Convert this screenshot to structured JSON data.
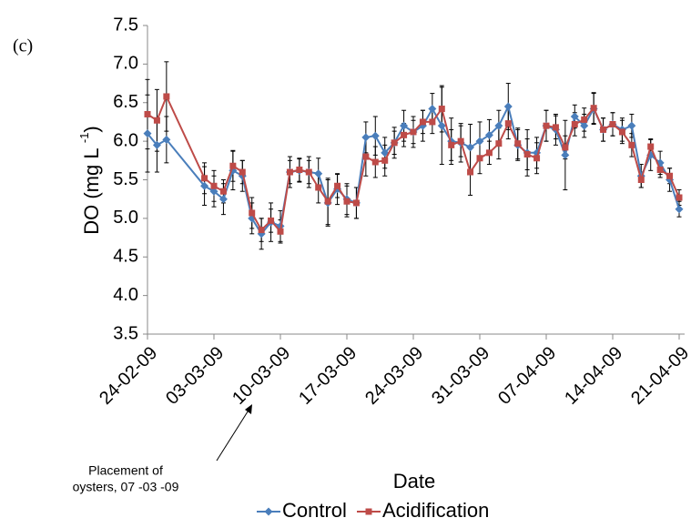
{
  "chart_data": {
    "type": "line",
    "panel_label": "(c)",
    "xlabel": "Date",
    "ylabel": {
      "text": "DO (mg L ",
      "sup": "-1",
      "end": ")"
    },
    "annotation": [
      "Placement of",
      "oysters, 07 -03 -09"
    ],
    "x": [
      "24-02-09",
      "25-02-09",
      "26-02-09",
      "02-03-09",
      "03-03-09",
      "04-03-09",
      "05-03-09",
      "06-03-09",
      "07-03-09",
      "08-03-09",
      "09-03-09",
      "10-03-09",
      "11-03-09",
      "12-03-09",
      "13-03-09",
      "14-03-09",
      "15-03-09",
      "16-03-09",
      "17-03-09",
      "18-03-09",
      "19-03-09",
      "20-03-09",
      "21-03-09",
      "22-03-09",
      "23-03-09",
      "24-03-09",
      "25-03-09",
      "26-03-09",
      "27-03-09",
      "28-03-09",
      "29-03-09",
      "30-03-09",
      "31-03-09",
      "01-04-09",
      "02-04-09",
      "03-04-09",
      "04-04-09",
      "05-04-09",
      "06-04-09",
      "07-04-09",
      "08-04-09",
      "09-04-09",
      "10-04-09",
      "11-04-09",
      "12-04-09",
      "13-04-09",
      "14-04-09",
      "15-04-09",
      "16-04-09",
      "17-04-09",
      "18-04-09",
      "19-04-09",
      "20-04-09",
      "21-04-09"
    ],
    "series": [
      {
        "name": "Control",
        "color": "#4a7ebb",
        "marker": "diamond",
        "values": [
          6.1,
          5.95,
          6.02,
          5.42,
          5.35,
          5.25,
          5.62,
          5.55,
          5.0,
          4.8,
          4.95,
          4.9,
          5.6,
          5.62,
          5.6,
          5.58,
          5.2,
          5.38,
          5.25,
          5.2,
          6.05,
          6.07,
          5.85,
          5.98,
          6.2,
          6.12,
          6.2,
          6.42,
          6.2,
          6.0,
          5.98,
          5.92,
          6.0,
          6.08,
          6.2,
          6.45,
          5.95,
          5.85,
          5.85,
          6.2,
          6.15,
          5.82,
          6.32,
          6.2,
          6.42,
          6.15,
          6.22,
          6.15,
          6.2,
          5.55,
          5.82,
          5.72,
          5.5,
          5.12
        ],
        "errors": [
          0.5,
          0.35,
          0.3,
          0.25,
          0.2,
          0.2,
          0.25,
          0.2,
          0.2,
          0.2,
          0.25,
          0.2,
          0.2,
          0.15,
          0.2,
          0.2,
          0.3,
          0.2,
          0.2,
          0.2,
          0.2,
          0.25,
          0.2,
          0.2,
          0.2,
          0.2,
          0.2,
          0.2,
          0.5,
          0.3,
          0.25,
          0.3,
          0.25,
          0.2,
          0.2,
          0.3,
          0.2,
          0.3,
          0.2,
          0.2,
          0.2,
          0.45,
          0.15,
          0.15,
          0.2,
          0.15,
          0.15,
          0.15,
          0.15,
          0.15,
          0.2,
          0.15,
          0.15,
          0.1
        ]
      },
      {
        "name": "Acidification",
        "color": "#be4b48",
        "marker": "square",
        "values": [
          6.35,
          6.27,
          6.58,
          5.52,
          5.42,
          5.35,
          5.68,
          5.6,
          5.07,
          4.85,
          4.97,
          4.83,
          5.6,
          5.63,
          5.6,
          5.4,
          5.22,
          5.42,
          5.22,
          5.2,
          5.8,
          5.73,
          5.75,
          5.98,
          6.08,
          6.12,
          6.25,
          6.25,
          6.42,
          5.95,
          6.0,
          5.6,
          5.78,
          5.85,
          5.97,
          6.23,
          5.97,
          5.83,
          5.78,
          6.2,
          6.18,
          5.92,
          6.22,
          6.28,
          6.43,
          6.15,
          6.22,
          6.12,
          5.95,
          5.5,
          5.93,
          5.63,
          5.55,
          5.27
        ],
        "errors": [
          0.45,
          0.4,
          0.45,
          0.2,
          0.2,
          0.15,
          0.2,
          0.15,
          0.2,
          0.15,
          0.15,
          0.15,
          0.15,
          0.15,
          0.15,
          0.2,
          0.3,
          0.15,
          0.2,
          0.2,
          0.25,
          0.2,
          0.2,
          0.15,
          0.15,
          0.15,
          0.15,
          0.15,
          0.3,
          0.2,
          0.2,
          0.3,
          0.2,
          0.15,
          0.2,
          0.2,
          0.2,
          0.2,
          0.2,
          0.2,
          0.15,
          0.15,
          0.15,
          0.15,
          0.2,
          0.15,
          0.15,
          0.15,
          0.15,
          0.1,
          0.1,
          0.1,
          0.1,
          0.1
        ]
      }
    ],
    "xlim": [
      "24-02-09",
      "21-04-09"
    ],
    "xticks": [
      "24-02-09",
      "03-03-09",
      "10-03-09",
      "17-03-09",
      "24-03-09",
      "31-03-09",
      "07-04-09",
      "14-04-09",
      "21-04-09"
    ],
    "ylim": [
      3.5,
      7.5
    ],
    "yticks": [
      3.5,
      4.0,
      4.5,
      5.0,
      5.5,
      6.0,
      6.5,
      7.0,
      7.5
    ],
    "legend": "bottom"
  }
}
